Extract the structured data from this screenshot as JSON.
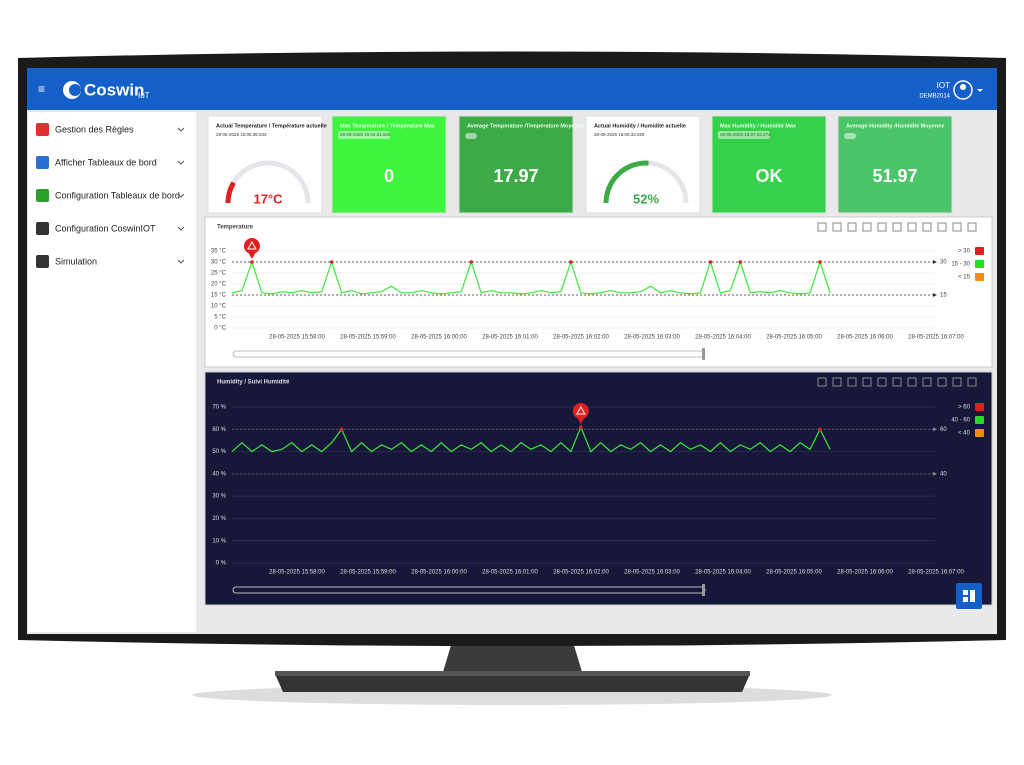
{
  "header": {
    "logo": "Coswin",
    "logo_sub": "IoT",
    "user": "IOT",
    "user_id": "DEMB2014"
  },
  "sidebar": {
    "items": [
      "Gestion des Règles",
      "Afficher Tableaux de bord",
      "Configuration Tableaux de bord",
      "Configuration CoswinIOT",
      "Simulation"
    ]
  },
  "cards": [
    {
      "title": "Actual Temperature / Température actuelle",
      "date": "28-05-2025 16:05:36.033",
      "value": 17,
      "value_label": "17°C",
      "color": "#e02020"
    },
    {
      "title": "Max Temperature / Température Max",
      "date": "28-05-2025 16:04:31.625",
      "value": 0,
      "color": "#3df53d"
    },
    {
      "title": "Average Temperature /Température Moyenne",
      "value": 17.97,
      "color": "#3daa48"
    },
    {
      "title": "Actual Humidity / Humidité actuelle",
      "date": "28-05-2025 16:05:33.025",
      "value": 52,
      "value_label": "52%",
      "color": "#3daa48"
    },
    {
      "title": "Max Humidity / Humidité Max",
      "date": "28-05-2025 16:07:22.274",
      "value": "OK",
      "color": "#36d14a"
    },
    {
      "title": "Average Humidity /Humidité Moyenne",
      "value": 51.97,
      "color": "#4cc46a"
    }
  ],
  "charts": [
    {
      "type": "line",
      "title": "Temperature",
      "categories": [
        "28-05-2025 15:58:00",
        "28-05-2025 15:59:00",
        "28-05-2025 16:00:00",
        "28-05-2025 16:01:00",
        "28-05-2025 16:02:00",
        "28-05-2025 16:03:00",
        "28-05-2025 16:04:00",
        "28-05-2025 16:05:00",
        "28-05-2025 16:06:00",
        "28-05-2025 16:07:00"
      ],
      "ylim": [
        0,
        35
      ],
      "yticks": [
        {
          "value": 0,
          "label": "0 °C"
        },
        {
          "value": 5,
          "label": "5 °C"
        },
        {
          "value": 10,
          "label": "10 °C"
        },
        {
          "value": 15,
          "label": "15 °C"
        },
        {
          "value": 20,
          "label": "20 °C"
        },
        {
          "value": 25,
          "label": "25 °C"
        },
        {
          "value": 30,
          "label": "30 °C"
        },
        {
          "value": 35,
          "label": "35 °C"
        }
      ],
      "thresholds": [
        30,
        15
      ],
      "legend": [
        {
          "label": "> 30",
          "color": "#e02020"
        },
        {
          "label": "15 - 30",
          "color": "#22dd22"
        },
        {
          "label": "< 15",
          "color": "#f08c1e"
        }
      ],
      "series": [
        {
          "color": "#3be83b",
          "values": [
            16,
            17,
            30,
            16,
            15.5,
            16.5,
            16,
            17,
            16,
            16.5,
            30,
            16,
            17,
            15.5,
            16,
            16.5,
            19,
            16,
            16,
            17,
            16,
            15.5,
            16,
            16.5,
            30,
            16,
            17,
            16,
            16,
            15.5,
            16,
            17,
            16,
            16.5,
            30,
            16,
            15.5,
            16,
            17,
            16,
            16,
            16.5,
            19,
            16,
            17,
            16,
            15.5,
            16,
            30,
            16,
            17,
            30,
            16,
            16.5,
            16,
            17,
            16,
            15.5,
            16,
            30,
            16
          ]
        }
      ]
    },
    {
      "type": "line",
      "title": "Humidity / Suivi Humidité",
      "categories": [
        "28-05-2025 15:58:00",
        "28-05-2025 15:59:00",
        "28-05-2025 16:00:00",
        "28-05-2025 16:01:00",
        "28-05-2025 16:02:00",
        "28-05-2025 16:03:00",
        "28-05-2025 16:04:00",
        "28-05-2025 16:05:00",
        "28-05-2025 16:06:00",
        "28-05-2025 16:07:00"
      ],
      "ylim": [
        0,
        70
      ],
      "yticks": [
        {
          "value": 0,
          "label": "0 %"
        },
        {
          "value": 10,
          "label": "10 %"
        },
        {
          "value": 20,
          "label": "20 %"
        },
        {
          "value": 30,
          "label": "30 %"
        },
        {
          "value": 40,
          "label": "40 %"
        },
        {
          "value": 50,
          "label": "50 %"
        },
        {
          "value": 60,
          "label": "60 %"
        },
        {
          "value": 70,
          "label": "70 %"
        }
      ],
      "thresholds": [
        60,
        40
      ],
      "legend": [
        {
          "label": "> 60",
          "color": "#e02020"
        },
        {
          "label": "40 - 60",
          "color": "#22dd22"
        },
        {
          "label": "< 40",
          "color": "#f08c1e"
        }
      ],
      "series": [
        {
          "color": "#3be83b",
          "values": [
            50,
            54,
            50,
            53,
            50,
            51,
            54,
            50,
            53,
            50,
            54,
            60,
            50,
            54,
            50,
            53,
            51,
            54,
            50,
            53,
            50,
            54,
            50,
            53,
            51,
            54,
            50,
            53,
            50,
            54,
            51,
            53,
            50,
            54,
            50,
            61,
            50,
            54,
            50,
            53,
            51,
            54,
            50,
            53,
            50,
            54,
            51,
            53,
            50,
            54,
            50,
            53,
            51,
            54,
            50,
            53,
            50,
            54,
            51,
            60,
            51
          ]
        }
      ]
    }
  ]
}
